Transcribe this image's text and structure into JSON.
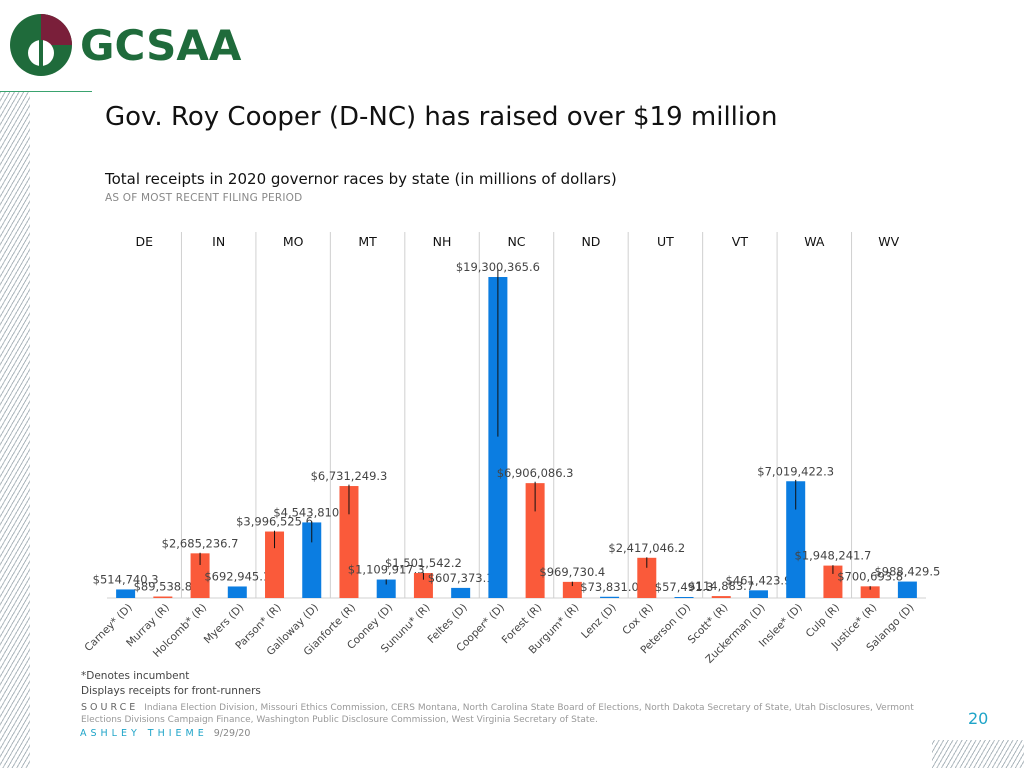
{
  "header": {
    "logo_text": "GCSAA",
    "title": "Gov. Roy Cooper (D-NC) has raised over $19 million",
    "subtitle": "Total receipts in 2020 governor races by state (in millions of dollars)",
    "as_of": "AS OF MOST RECENT FILING PERIOD"
  },
  "colors": {
    "democrat": "#0b7de1",
    "republican": "#fa5a3a",
    "brand_green": "#1f6b3b",
    "brand_maroon": "#7a1f3a",
    "accent": "#1ea4c8"
  },
  "chart_data": {
    "type": "bar",
    "title": "",
    "xlabel": "",
    "ylabel": "",
    "ylim": [
      0,
      19300365.6
    ],
    "grid": false,
    "groups": [
      {
        "state": "DE",
        "candidates": [
          "Carney* (D)",
          "Murray (R)"
        ]
      },
      {
        "state": "IN",
        "candidates": [
          "Holcomb* (R)",
          "Myers (D)"
        ]
      },
      {
        "state": "MO",
        "candidates": [
          "Parson* (R)",
          "Galloway (D)"
        ]
      },
      {
        "state": "MT",
        "candidates": [
          "Gianforte (R)",
          "Cooney (D)"
        ]
      },
      {
        "state": "NH",
        "candidates": [
          "Sununu* (R)",
          "Feltes (D)"
        ]
      },
      {
        "state": "NC",
        "candidates": [
          "Cooper* (D)",
          "Forest (R)"
        ]
      },
      {
        "state": "ND",
        "candidates": [
          "Burgum* (R)",
          "Lenz (D)"
        ]
      },
      {
        "state": "UT",
        "candidates": [
          "Cox (R)",
          "Peterson (D)"
        ]
      },
      {
        "state": "VT",
        "candidates": [
          "Scott* (R)",
          "Zuckerman (D)"
        ]
      },
      {
        "state": "WA",
        "candidates": [
          "Inslee* (D)",
          "Culp (R)"
        ]
      },
      {
        "state": "WV",
        "candidates": [
          "Justice* (R)",
          "Salango (D)"
        ]
      }
    ],
    "bars": [
      {
        "category": "Carney* (D)",
        "party": "D",
        "value": 514740.3,
        "label": "$514,740.3",
        "error": 0
      },
      {
        "category": "Murray (R)",
        "party": "R",
        "value": 89538.8,
        "label": "$89,538.8",
        "error": 0
      },
      {
        "category": "Holcomb* (R)",
        "party": "R",
        "value": 2685236.7,
        "label": "$2,685,236.7",
        "error": 700000
      },
      {
        "category": "Myers (D)",
        "party": "D",
        "value": 692945.1,
        "label": "$692,945.1",
        "error": 0
      },
      {
        "category": "Parson* (R)",
        "party": "R",
        "value": 3996525.6,
        "label": "$3,996,525.6",
        "error": 1000000
      },
      {
        "category": "Galloway (D)",
        "party": "D",
        "value": 4543810.2,
        "label": "$4,543,810.2",
        "error": 1200000
      },
      {
        "category": "Gianforte (R)",
        "party": "R",
        "value": 6731249.3,
        "label": "$6,731,249.3",
        "error": 1700000
      },
      {
        "category": "Cooney (D)",
        "party": "D",
        "value": 1109917.3,
        "label": "$1,109,917.3",
        "error": 300000
      },
      {
        "category": "Sununu* (R)",
        "party": "R",
        "value": 1501542.2,
        "label": "$1,501,542.2",
        "error": 400000
      },
      {
        "category": "Feltes (D)",
        "party": "D",
        "value": 607373.1,
        "label": "$607,373.1",
        "error": 0
      },
      {
        "category": "Cooper* (D)",
        "party": "D",
        "value": 19300365.6,
        "label": "$19,300,365.6",
        "error": 9600000
      },
      {
        "category": "Forest (R)",
        "party": "R",
        "value": 6906086.3,
        "label": "$6,906,086.3",
        "error": 1700000
      },
      {
        "category": "Burgum* (R)",
        "party": "R",
        "value": 969730.4,
        "label": "$969,730.4",
        "error": 250000
      },
      {
        "category": "Lenz (D)",
        "party": "D",
        "value": 73831.0,
        "label": "$73,831.0",
        "error": 0
      },
      {
        "category": "Cox (R)",
        "party": "R",
        "value": 2417046.2,
        "label": "$2,417,046.2",
        "error": 600000
      },
      {
        "category": "Peterson (D)",
        "party": "D",
        "value": 57491.3,
        "label": "$57,491.3",
        "error": 0
      },
      {
        "category": "Scott* (R)",
        "party": "R",
        "value": 114883.7,
        "label": "$114,883.7",
        "error": 0
      },
      {
        "category": "Zuckerman (D)",
        "party": "D",
        "value": 461423.9,
        "label": "$461,423.9",
        "error": 0
      },
      {
        "category": "Inslee* (D)",
        "party": "D",
        "value": 7019422.3,
        "label": "$7,019,422.3",
        "error": 1700000
      },
      {
        "category": "Culp (R)",
        "party": "R",
        "value": 1948241.7,
        "label": "$1,948,241.7",
        "error": 500000
      },
      {
        "category": "Justice* (R)",
        "party": "R",
        "value": 700693.8,
        "label": "$700,693.8",
        "error": 200000
      },
      {
        "category": "Salango (D)",
        "party": "D",
        "value": 988429.5,
        "label": "$988,429.5",
        "error": 0
      }
    ]
  },
  "footer": {
    "note_incumbent": "*Denotes incumbent",
    "note_frontrunners": "Displays receipts for front-runners",
    "source_label": "SOURCE",
    "source_text": "Indiana Election Division, Missouri Ethics Commission, CERS Montana, North Carolina State Board of Elections, North Dakota Secretary of State, Utah Disclosures, Vermont Elections Divisions Campaign Finance, Washington Public Disclosure Commission, West Virginia Secretary of State.",
    "author": "ASHLEY THIEME",
    "date": "9/29/20",
    "page_number": "20"
  }
}
